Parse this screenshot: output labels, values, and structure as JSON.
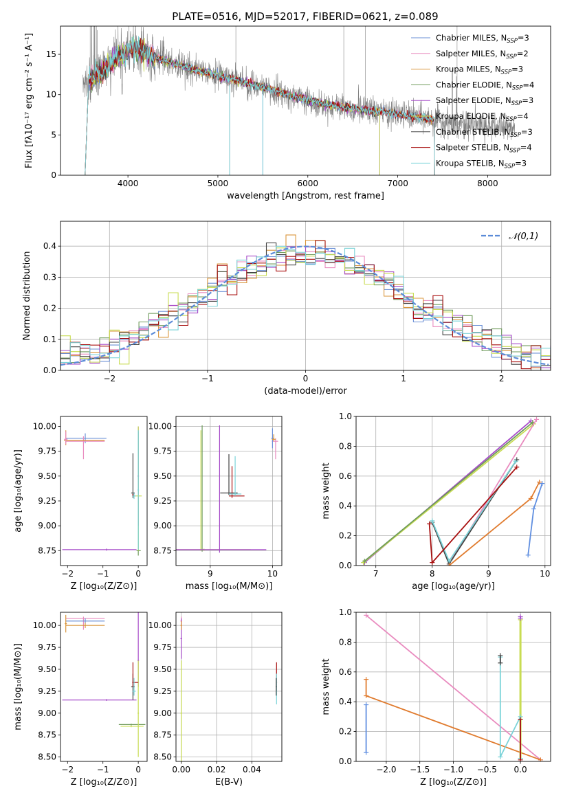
{
  "title": "PLATE=0516, MJD=52017, FIBERID=0621, z=0.089",
  "colors": {
    "Chabrier MILES": "#6a8fd6",
    "Salpeter MILES": "#e98bbf",
    "Kroupa MILES": "#d9953b",
    "Chabrier ELODIE": "#6e9a5a",
    "Salpeter ELODIE": "#a64ac9",
    "Kroupa ELODIE": "#c8dc52",
    "Chabrier STELIB": "#444444",
    "Salpeter STELIB": "#a80f0f",
    "Kroupa STELIB": "#7ad3d8",
    "observed": "#808080",
    "normal": "#5b8bd8",
    "mwline_chab_miles": "#5f8ee0",
    "mwline_kroupa_miles": "#e07b2e"
  },
  "chart_data": [
    {
      "type": "line",
      "panel": "spectrum",
      "xlabel": "wavelength [Angstrom, rest frame]",
      "ylabel": "Flux [fλ10⁻¹⁷ erg cm⁻² s⁻¹ A⁻¹]",
      "xlim": [
        3250,
        8700
      ],
      "ylim": [
        0,
        18.5
      ],
      "xticks": [
        4000,
        5000,
        6000,
        7000,
        8000
      ],
      "yticks": [
        0,
        5,
        10,
        15
      ],
      "legend": "top-right",
      "continuum_knots": {
        "x": [
          3500,
          3700,
          3900,
          4050,
          4300,
          4600,
          5000,
          5400,
          5800,
          6200,
          6600,
          7000,
          7400,
          7800,
          8300
        ],
        "y": [
          11.2,
          12.8,
          14.8,
          15.8,
          14.6,
          13.6,
          12.3,
          11.2,
          9.9,
          8.8,
          8.1,
          7.6,
          6.9,
          6.2,
          5.9
        ]
      },
      "series": [
        {
          "name": "Chabrier MILES, N_SSP=3",
          "xmax": 7410
        },
        {
          "name": "Salpeter MILES, N_SSP=2",
          "xmax": 7410
        },
        {
          "name": "Kroupa MILES, N_SSP=3",
          "xmax": 7410
        },
        {
          "name": "Chabrier ELODIE, N_SSP=4",
          "xmax": 6800
        },
        {
          "name": "Salpeter ELODIE, N_SSP=3",
          "xmax": 6800
        },
        {
          "name": "Kroupa ELODIE, N_SSP=4",
          "xmax": 6800
        },
        {
          "name": "Chabrier STELIB, N_SSP=3",
          "xmax": 7410
        },
        {
          "name": "Salpeter STELIB, N_SSP=4",
          "xmax": 7410
        },
        {
          "name": "Kroupa STELIB, N_SSP=3",
          "xmax": 7410
        }
      ],
      "legend_labels": [
        "Chabrier MILES, N",
        "Salpeter MILES, N",
        "Kroupa MILES, N",
        "Chabrier ELODIE, N",
        "Salpeter ELODIE, N",
        "Kroupa ELODIE, N",
        "Chabrier STELIB, N",
        "Salpeter STELIB, N",
        "Kroupa STELIB, N"
      ],
      "legend_sub": "SSP",
      "legend_vals": [
        "=3",
        "=2",
        "=3",
        "=4",
        "=3",
        "=4",
        "=3",
        "=4",
        "=3"
      ]
    },
    {
      "type": "histogram",
      "panel": "residuals",
      "xlabel": "(data-model)/error",
      "ylabel": "Normed distribution",
      "xlim": [
        -2.5,
        2.5
      ],
      "ylim": [
        0,
        0.48
      ],
      "xticks": [
        -2,
        -1,
        0,
        1,
        2
      ],
      "yticks": [
        0.0,
        0.1,
        0.2,
        0.3,
        0.4
      ],
      "grid": true,
      "legend": "top-right",
      "normal_label": "𝒩(0,1)",
      "bin_width": 0.1
    },
    {
      "type": "errorbar",
      "panel": "age-vs-Z",
      "xlabel": "Z [log₁₀(Z/Z⊙)]",
      "ylabel": "age  [log₁₀(age/yr)]",
      "xlim": [
        -2.2,
        0.25
      ],
      "ylim": [
        8.6,
        10.1
      ],
      "xticks": [
        -2,
        -1,
        0
      ],
      "yticks": [
        8.75,
        9.0,
        9.25,
        9.5,
        9.75,
        10.0
      ]
    },
    {
      "type": "errorbar",
      "panel": "age-vs-mass",
      "xlabel": "mass [log₁₀(M/M⊙)]",
      "xlim": [
        8.45,
        10.15
      ],
      "ylim": [
        8.6,
        10.1
      ],
      "xticks": [
        9,
        10
      ],
      "yticks": [
        8.75,
        9.0,
        9.25,
        9.5,
        9.75,
        10.0
      ],
      "grid": true
    },
    {
      "type": "line",
      "panel": "massweight-vs-age",
      "xlabel": "age  [log₁₀(age/yr)]",
      "ylabel": "mass weight",
      "xlim": [
        6.65,
        10.1
      ],
      "ylim": [
        0,
        1.0
      ],
      "xticks": [
        7,
        8,
        9,
        10
      ],
      "yticks": [
        0.0,
        0.2,
        0.4,
        0.6,
        0.8,
        1.0
      ],
      "grid": true
    },
    {
      "type": "errorbar",
      "panel": "mass-vs-Z",
      "xlabel": "Z [log₁₀(Z/Z⊙)]",
      "ylabel": "mass [log₁₀(M/M⊙)]",
      "xlim": [
        -2.2,
        0.25
      ],
      "ylim": [
        8.45,
        10.15
      ],
      "xticks": [
        -2,
        -1,
        0
      ],
      "yticks": [
        8.5,
        8.75,
        9.0,
        9.25,
        9.5,
        9.75,
        10.0
      ]
    },
    {
      "type": "errorbar",
      "panel": "mass-vs-EBV",
      "xlabel": "E(B-V)",
      "xlim": [
        -0.003,
        0.057
      ],
      "ylim": [
        8.45,
        10.15
      ],
      "xticks": [
        0.0,
        0.02,
        0.04
      ],
      "yticks": [
        8.5,
        8.75,
        9.0,
        9.25,
        9.5,
        9.75,
        10.0
      ],
      "grid": true
    },
    {
      "type": "line",
      "panel": "massweight-vs-Z",
      "xlabel": "Z [log₁₀(Z/Z⊙)]",
      "ylabel": "mass weight",
      "xlim": [
        -2.45,
        0.45
      ],
      "ylim": [
        0,
        1.0
      ],
      "xticks": [
        -2.0,
        -1.5,
        -1.0,
        -0.5,
        0.0
      ],
      "yticks": [
        0.0,
        0.2,
        0.4,
        0.6,
        0.8,
        1.0
      ],
      "grid": true
    }
  ]
}
